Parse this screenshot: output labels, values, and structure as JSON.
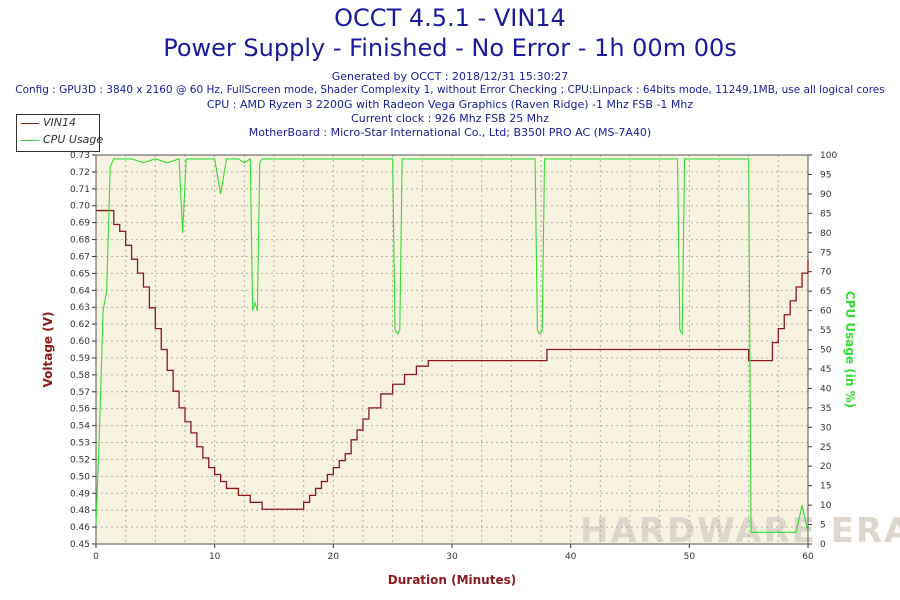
{
  "header": {
    "title": "OCCT 4.5.1 - VIN14",
    "subtitle": "Power Supply - Finished - No Error - 1h 00m 00s",
    "generated": "Generated by OCCT : 2018/12/31 15:30:27",
    "config": "Config : GPU3D : 3840 x 2160 @ 60 Hz, FullScreen mode, Shader Complexity 1, without Error Checking ; CPU:Linpack : 64bits mode, 11249,1MB, use all logical cores",
    "cpu": "CPU : AMD Ryzen 3 2200G with Radeon Vega Graphics (Raven Ridge) -1 Mhz FSB -1 Mhz",
    "clock": "Current clock : 926 Mhz FSB 25 Mhz",
    "motherboard": "MotherBoard : Micro-Star International Co., Ltd; B350I PRO AC (MS-7A40)"
  },
  "watermark": "HARDWARE ERA",
  "colors": {
    "voltage": "#8b1a1a",
    "cpu": "#33dd33",
    "plot_bg": "#f8f2e0",
    "title": "#1a1a9c"
  },
  "chart_data": {
    "type": "line",
    "xlabel": "Duration (Minutes)",
    "ylabel_left": "Voltage (V)",
    "ylabel_right": "CPU Usage (in %)",
    "xlim": [
      0,
      60
    ],
    "ylim_left": [
      0.45,
      0.73
    ],
    "ylim_right": [
      0,
      100
    ],
    "x_ticks": [
      0,
      10,
      20,
      30,
      40,
      50,
      60
    ],
    "y_ticks_left": [
      "0.45",
      "0.46",
      "0.48",
      "0.49",
      "0.50",
      "0.52",
      "0.53",
      "0.54",
      "0.56",
      "0.57",
      "0.58",
      "0.59",
      "0.60",
      "0.62",
      "0.63",
      "0.64",
      "0.65",
      "0.67",
      "0.68",
      "0.69",
      "0.70",
      "0.71",
      "0.72",
      "0.73"
    ],
    "y_ticks_right": [
      0,
      5,
      10,
      15,
      20,
      25,
      30,
      35,
      40,
      45,
      50,
      55,
      60,
      65,
      70,
      75,
      80,
      85,
      90,
      95,
      100
    ],
    "grid": true,
    "legend_position": "top-left",
    "series": [
      {
        "name": "VIN14",
        "axis": "left",
        "x": [
          0,
          0.5,
          1.5,
          2.0,
          2.5,
          3.0,
          3.5,
          4.0,
          4.5,
          5.0,
          5.5,
          6.0,
          6.5,
          7.0,
          7.5,
          8.0,
          8.5,
          9.0,
          9.5,
          10.0,
          10.5,
          11.0,
          12.0,
          13.0,
          14.0,
          15.0,
          16.0,
          17.0,
          17.5,
          18.0,
          18.5,
          19.0,
          19.5,
          20.0,
          20.5,
          21.0,
          21.5,
          22.0,
          22.5,
          23.0,
          24.0,
          25.0,
          26.0,
          27.0,
          28.0,
          30.0,
          32.0,
          34.0,
          36.0,
          38.0,
          40.0,
          42.0,
          44.0,
          46.0,
          48.0,
          50.0,
          52.0,
          54.0,
          55.0,
          56.0,
          57.0,
          57.5,
          58.0,
          58.5,
          59.0,
          59.5,
          60.0
        ],
        "values": [
          0.69,
          0.69,
          0.68,
          0.675,
          0.665,
          0.655,
          0.645,
          0.635,
          0.62,
          0.605,
          0.59,
          0.575,
          0.56,
          0.548,
          0.538,
          0.53,
          0.52,
          0.512,
          0.505,
          0.5,
          0.495,
          0.49,
          0.485,
          0.48,
          0.475,
          0.475,
          0.475,
          0.475,
          0.48,
          0.485,
          0.49,
          0.495,
          0.5,
          0.505,
          0.51,
          0.515,
          0.525,
          0.532,
          0.54,
          0.548,
          0.558,
          0.565,
          0.572,
          0.578,
          0.582,
          0.582,
          0.582,
          0.582,
          0.582,
          0.59,
          0.59,
          0.59,
          0.59,
          0.59,
          0.59,
          0.59,
          0.59,
          0.59,
          0.582,
          0.582,
          0.595,
          0.605,
          0.615,
          0.625,
          0.635,
          0.645,
          0.655
        ]
      },
      {
        "name": "CPU Usage",
        "axis": "right",
        "x": [
          0,
          0.3,
          0.6,
          0.9,
          1.2,
          1.5,
          2,
          3,
          4,
          5,
          6,
          7,
          7.3,
          7.6,
          8,
          9,
          10,
          10.5,
          11,
          12,
          12.5,
          13,
          13.2,
          13.4,
          13.6,
          13.8,
          14,
          15,
          16,
          17,
          18,
          19,
          20,
          21,
          22,
          23,
          24,
          25,
          25.2,
          25.4,
          25.6,
          25.8,
          26,
          27,
          28,
          29,
          30,
          31,
          32,
          33,
          34,
          35,
          36,
          37,
          37.2,
          37.4,
          37.6,
          37.8,
          38,
          39,
          40,
          41,
          42,
          43,
          44,
          45,
          46,
          47,
          48,
          49,
          49.2,
          49.4,
          49.6,
          49.8,
          50,
          51,
          52,
          53,
          54,
          55,
          55.2,
          55.5,
          56,
          57,
          58,
          59,
          59.5,
          60
        ],
        "values": [
          5,
          30,
          60,
          65,
          97,
          99,
          99,
          99,
          98,
          99,
          98,
          99,
          80,
          99,
          99,
          99,
          99,
          90,
          99,
          99,
          98,
          99,
          60,
          62,
          60,
          98,
          99,
          99,
          99,
          99,
          99,
          99,
          99,
          99,
          99,
          99,
          99,
          99,
          55,
          54,
          55,
          99,
          99,
          99,
          99,
          99,
          99,
          99,
          99,
          99,
          99,
          99,
          99,
          99,
          55,
          54,
          55,
          99,
          99,
          99,
          99,
          99,
          99,
          99,
          99,
          99,
          99,
          99,
          99,
          99,
          55,
          54,
          99,
          99,
          99,
          99,
          99,
          99,
          99,
          99,
          3,
          3,
          3,
          3,
          3,
          3,
          10,
          3
        ]
      }
    ]
  }
}
